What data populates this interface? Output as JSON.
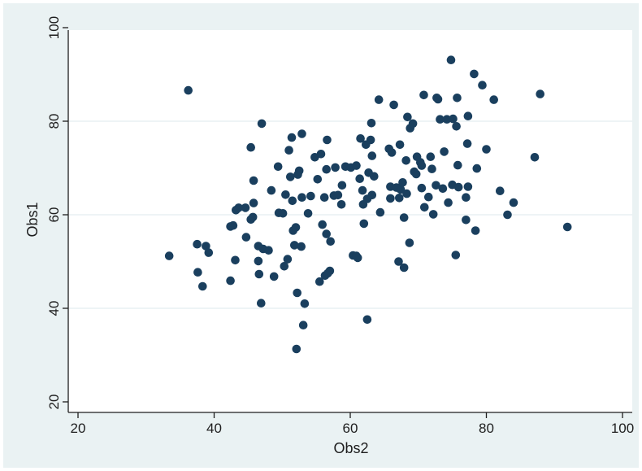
{
  "chart_data": {
    "type": "scatter",
    "xlabel": "Obs2",
    "ylabel": "Obs1",
    "xlim": [
      20,
      100
    ],
    "ylim": [
      20,
      100
    ],
    "xticks": [
      "20",
      "40",
      "60",
      "80",
      "100"
    ],
    "yticks": [
      "20",
      "40",
      "60",
      "80",
      "100"
    ],
    "grid": "horizontal",
    "colors": {
      "point": "#1a3f5e",
      "plot_background": "#ffffff",
      "outer_background": "#eaf2f3",
      "grid": "#e4eef0"
    },
    "points": [
      [
        33.4,
        51.2
      ],
      [
        36.2,
        86.6
      ],
      [
        37.5,
        53.7
      ],
      [
        37.6,
        47.7
      ],
      [
        38.3,
        44.7
      ],
      [
        38.8,
        53.3
      ],
      [
        39.2,
        51.9
      ],
      [
        42.4,
        45.9
      ],
      [
        42.4,
        57.5
      ],
      [
        42.8,
        57.7
      ],
      [
        43.2,
        61.0
      ],
      [
        43.1,
        50.3
      ],
      [
        43.6,
        61.5
      ],
      [
        44.6,
        61.5
      ],
      [
        44.7,
        55.2
      ],
      [
        45.4,
        74.4
      ],
      [
        45.4,
        59.0
      ],
      [
        45.7,
        59.5
      ],
      [
        45.8,
        62.5
      ],
      [
        45.8,
        67.3
      ],
      [
        46.5,
        50.1
      ],
      [
        46.5,
        53.3
      ],
      [
        46.6,
        47.3
      ],
      [
        46.9,
        41.1
      ],
      [
        47.0,
        79.5
      ],
      [
        47.2,
        52.7
      ],
      [
        48.0,
        52.4
      ],
      [
        48.4,
        65.2
      ],
      [
        48.8,
        46.8
      ],
      [
        49.4,
        70.3
      ],
      [
        49.5,
        60.4
      ],
      [
        50.1,
        60.3
      ],
      [
        50.3,
        49.0
      ],
      [
        50.5,
        64.3
      ],
      [
        50.8,
        50.5
      ],
      [
        51.0,
        73.8
      ],
      [
        51.2,
        68.1
      ],
      [
        51.4,
        76.5
      ],
      [
        51.5,
        63.0
      ],
      [
        51.6,
        56.6
      ],
      [
        51.8,
        53.5
      ],
      [
        52.0,
        57.3
      ],
      [
        52.1,
        31.3
      ],
      [
        52.2,
        43.3
      ],
      [
        52.3,
        68.6
      ],
      [
        52.5,
        69.4
      ],
      [
        52.8,
        53.2
      ],
      [
        52.9,
        63.7
      ],
      [
        52.9,
        77.3
      ],
      [
        53.1,
        36.4
      ],
      [
        53.3,
        41.0
      ],
      [
        53.8,
        60.3
      ],
      [
        54.2,
        64.0
      ],
      [
        54.8,
        72.3
      ],
      [
        55.2,
        67.6
      ],
      [
        55.5,
        45.7
      ],
      [
        55.7,
        73.0
      ],
      [
        55.9,
        57.9
      ],
      [
        56.2,
        63.7
      ],
      [
        56.3,
        47.0
      ],
      [
        56.5,
        55.9
      ],
      [
        56.5,
        69.7
      ],
      [
        56.6,
        76.0
      ],
      [
        56.7,
        47.5
      ],
      [
        57.0,
        48.0
      ],
      [
        57.1,
        54.3
      ],
      [
        57.6,
        64.1
      ],
      [
        57.8,
        70.1
      ],
      [
        58.2,
        64.2
      ],
      [
        58.7,
        62.2
      ],
      [
        58.8,
        66.3
      ],
      [
        59.3,
        70.3
      ],
      [
        60.1,
        70.1
      ],
      [
        60.4,
        51.3
      ],
      [
        60.9,
        51.2
      ],
      [
        60.9,
        70.5
      ],
      [
        61.1,
        50.8
      ],
      [
        61.4,
        67.7
      ],
      [
        61.5,
        76.3
      ],
      [
        61.8,
        65.2
      ],
      [
        61.9,
        62.2
      ],
      [
        62.0,
        58.1
      ],
      [
        62.3,
        75.0
      ],
      [
        62.5,
        37.6
      ],
      [
        62.5,
        63.4
      ],
      [
        62.7,
        69.0
      ],
      [
        63.0,
        76.0
      ],
      [
        63.1,
        79.6
      ],
      [
        63.2,
        72.6
      ],
      [
        63.2,
        64.2
      ],
      [
        63.5,
        68.2
      ],
      [
        64.2,
        84.6
      ],
      [
        64.4,
        60.5
      ],
      [
        65.7,
        74.1
      ],
      [
        65.9,
        63.5
      ],
      [
        65.9,
        66.0
      ],
      [
        66.1,
        73.3
      ],
      [
        66.4,
        83.5
      ],
      [
        66.8,
        65.8
      ],
      [
        67.1,
        50.0
      ],
      [
        67.2,
        63.6
      ],
      [
        67.3,
        75.0
      ],
      [
        67.4,
        65.4
      ],
      [
        67.7,
        66.9
      ],
      [
        67.9,
        59.4
      ],
      [
        67.9,
        48.7
      ],
      [
        68.2,
        71.6
      ],
      [
        68.3,
        64.5
      ],
      [
        68.4,
        80.9
      ],
      [
        68.7,
        54.0
      ],
      [
        68.8,
        78.5
      ],
      [
        69.2,
        79.5
      ],
      [
        69.4,
        69.2
      ],
      [
        69.7,
        68.7
      ],
      [
        69.8,
        72.4
      ],
      [
        70.3,
        71.2
      ],
      [
        70.5,
        70.5
      ],
      [
        70.5,
        65.7
      ],
      [
        70.8,
        85.6
      ],
      [
        70.9,
        61.6
      ],
      [
        71.5,
        63.8
      ],
      [
        71.8,
        72.4
      ],
      [
        72.0,
        69.8
      ],
      [
        72.2,
        60.1
      ],
      [
        72.6,
        66.3
      ],
      [
        72.7,
        85.0
      ],
      [
        72.9,
        84.7
      ],
      [
        73.2,
        80.4
      ],
      [
        73.6,
        65.6
      ],
      [
        73.8,
        73.5
      ],
      [
        74.2,
        80.4
      ],
      [
        74.4,
        62.6
      ],
      [
        74.8,
        93.1
      ],
      [
        75.0,
        66.4
      ],
      [
        75.1,
        80.5
      ],
      [
        75.5,
        51.4
      ],
      [
        75.6,
        78.9
      ],
      [
        75.7,
        85.0
      ],
      [
        75.8,
        70.6
      ],
      [
        75.9,
        65.9
      ],
      [
        77.0,
        63.7
      ],
      [
        77.0,
        58.9
      ],
      [
        77.2,
        75.2
      ],
      [
        77.3,
        66.0
      ],
      [
        77.3,
        81.1
      ],
      [
        78.2,
        90.1
      ],
      [
        78.4,
        56.6
      ],
      [
        78.6,
        69.9
      ],
      [
        79.4,
        87.7
      ],
      [
        80.0,
        74.0
      ],
      [
        81.1,
        84.6
      ],
      [
        82.0,
        65.1
      ],
      [
        83.1,
        60.0
      ],
      [
        84.0,
        62.6
      ],
      [
        87.1,
        72.3
      ],
      [
        87.9,
        85.8
      ],
      [
        91.9,
        57.4
      ]
    ]
  }
}
